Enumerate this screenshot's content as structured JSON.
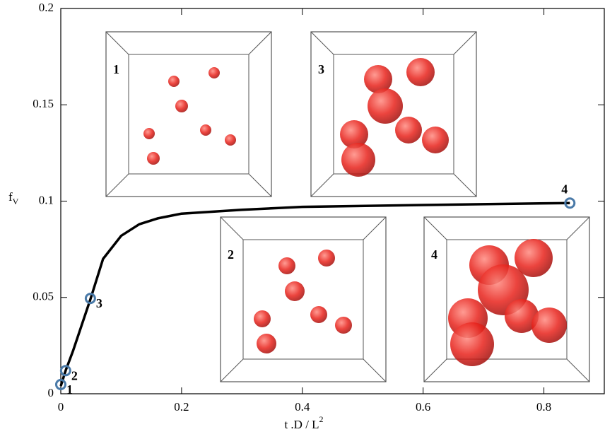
{
  "chart_data": {
    "type": "line",
    "xlabel": "t .D / L",
    "xlabel_sup": "2",
    "ylabel": "f",
    "ylabel_sub": "V",
    "xlim": [
      0,
      0.9
    ],
    "ylim": [
      0,
      0.2
    ],
    "xticks": [
      0,
      0.2,
      0.4,
      0.6,
      0.8
    ],
    "yticks": [
      0,
      0.05,
      0.1,
      0.15,
      0.2
    ],
    "series": [
      {
        "color": "#000000",
        "x": [
          0,
          0.008,
          0.02,
          0.035,
          0.049,
          0.07,
          0.1,
          0.13,
          0.16,
          0.2,
          0.3,
          0.4,
          0.6,
          0.843
        ],
        "values": [
          0.004,
          0.012,
          0.022,
          0.036,
          0.049,
          0.07,
          0.082,
          0.088,
          0.091,
          0.0935,
          0.0955,
          0.097,
          0.098,
          0.099
        ]
      },
      {
        "color": "#4a7aa8",
        "x": [
          0,
          0.008,
          0.049,
          0.843
        ],
        "values": [
          0.0048,
          0.012,
          0.0495,
          0.099
        ],
        "point_labels": [
          "1",
          "2",
          "3",
          "4"
        ]
      }
    ],
    "insets": [
      {
        "label": "1"
      },
      {
        "label": "2"
      },
      {
        "label": "3"
      },
      {
        "label": "4"
      }
    ]
  }
}
